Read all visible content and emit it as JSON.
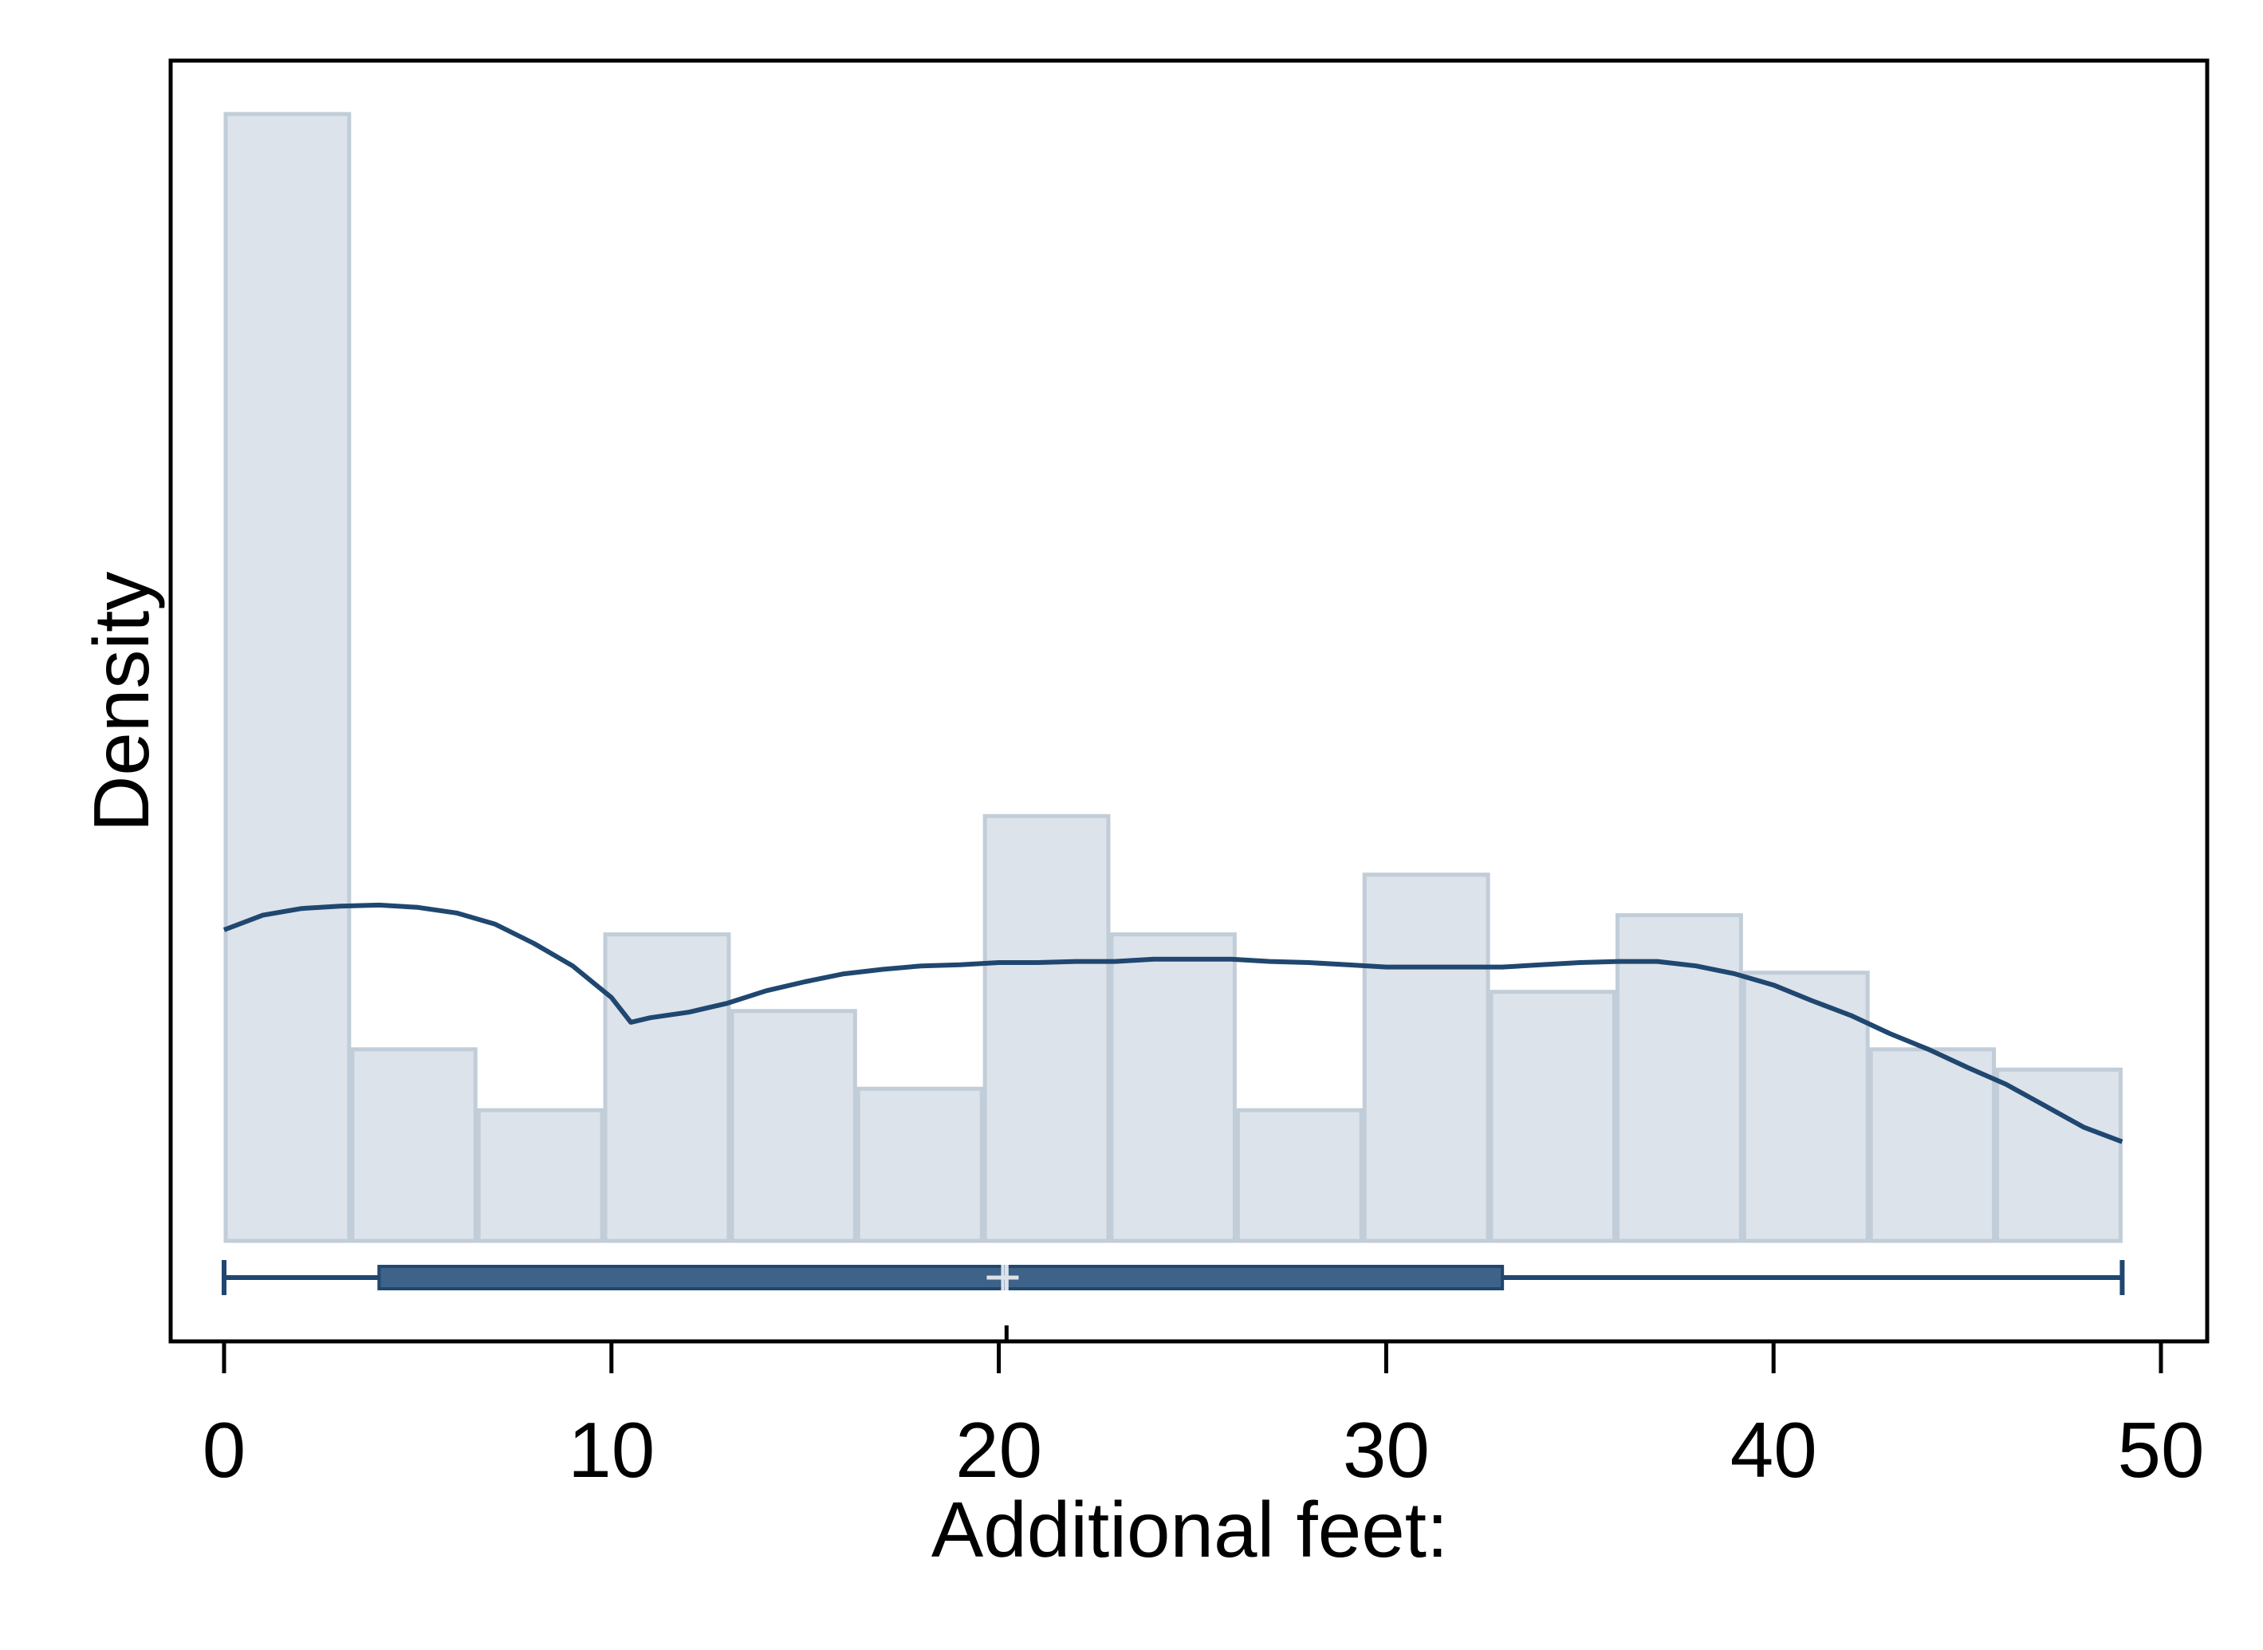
{
  "chart_data": {
    "type": "bar",
    "subtype": "histogram-with-kernel-density-and-boxplot",
    "title": "",
    "xlabel": "Additional feet:",
    "ylabel": "Density",
    "xlim": [
      0,
      50
    ],
    "xticks": [
      0,
      10,
      20,
      30,
      40,
      50
    ],
    "xtick_labels": [
      "0",
      "10",
      "20",
      "30",
      "40",
      "50"
    ],
    "y_axis_ticks_shown": false,
    "grid": false,
    "legend": "none",
    "histogram": {
      "bin_edges": [
        0,
        3.27,
        6.53,
        9.8,
        13.07,
        16.33,
        19.6,
        22.87,
        26.13,
        29.4,
        32.67,
        35.93,
        39.2,
        42.47,
        45.73,
        49
      ],
      "relative_heights": [
        1.0,
        0.17,
        0.116,
        0.272,
        0.204,
        0.135,
        0.377,
        0.272,
        0.116,
        0.325,
        0.221,
        0.289,
        0.238,
        0.17,
        0.152
      ]
    },
    "density_curve": {
      "x": [
        0,
        1,
        2,
        3,
        4,
        5,
        6,
        7,
        8,
        9,
        10,
        10.5,
        11,
        12,
        13,
        14,
        15,
        16,
        17,
        18,
        19,
        20,
        21,
        22,
        23,
        24,
        25,
        26,
        27,
        28,
        29,
        30,
        31,
        32,
        33,
        34,
        35,
        36,
        37,
        38,
        39,
        40,
        41,
        42,
        43,
        44,
        45,
        46,
        47,
        48,
        49
      ],
      "relative_y": [
        0.276,
        0.289,
        0.295,
        0.297,
        0.298,
        0.296,
        0.291,
        0.281,
        0.264,
        0.244,
        0.216,
        0.194,
        0.198,
        0.203,
        0.211,
        0.222,
        0.23,
        0.237,
        0.241,
        0.244,
        0.245,
        0.247,
        0.247,
        0.248,
        0.248,
        0.25,
        0.25,
        0.25,
        0.248,
        0.247,
        0.245,
        0.243,
        0.243,
        0.243,
        0.243,
        0.245,
        0.247,
        0.248,
        0.248,
        0.244,
        0.237,
        0.227,
        0.213,
        0.2,
        0.184,
        0.17,
        0.154,
        0.139,
        0.12,
        0.101,
        0.088
      ]
    },
    "boxplot": {
      "min": 0,
      "q1": 4,
      "median": 20.2,
      "mean": 20.1,
      "q3": 33,
      "max": 49
    },
    "colors": {
      "bar_fill": "#dde3ea",
      "bar_edge": "#c1cdd8",
      "density_line": "#1f4770",
      "box_fill": "#3e6288",
      "box_edge": "#1f4770",
      "axis": "#000000"
    }
  }
}
